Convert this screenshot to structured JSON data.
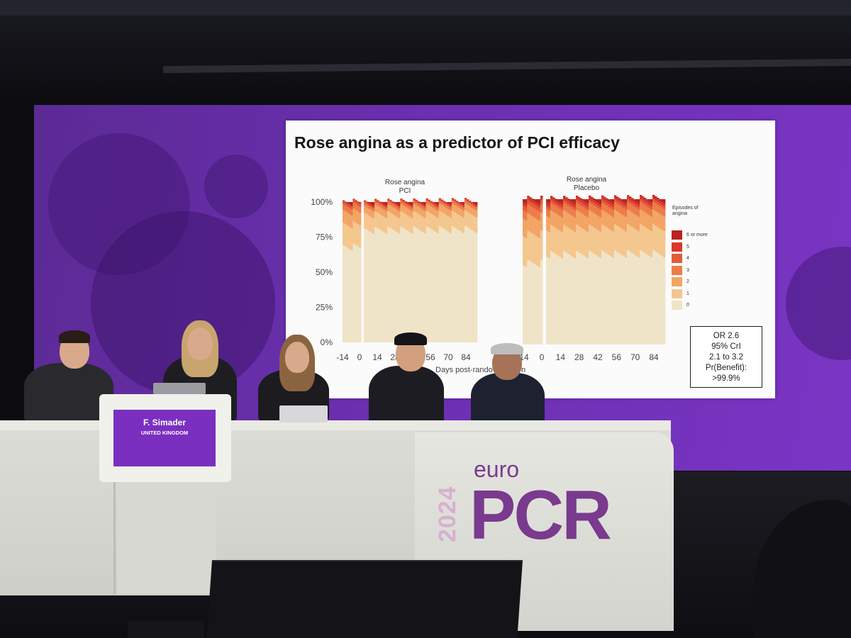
{
  "slide": {
    "title": "Rose angina as a predictor of PCI efficacy",
    "or_box": [
      "OR 2.6",
      "95% CrI",
      "2.1 to 3.2",
      "Pr(Benefit):",
      ">99.9%"
    ],
    "x_axis_label": "Days post-rando",
    "x_axis_label_suffix": "n"
  },
  "chart_data": [
    {
      "type": "bar",
      "title": "Rose angina\nPCI",
      "title_lines": [
        "Rose angina",
        "PCI"
      ],
      "y_ticks": [
        "100%",
        "75%",
        "50%",
        "25%",
        "0%"
      ],
      "x_ticks": [
        "-14",
        "0",
        "14",
        "28",
        "42",
        "56",
        "70",
        "84"
      ],
      "ylim": [
        0,
        100
      ],
      "stacked": true,
      "segments_percent_pre": {
        "0": 68,
        "1": 16,
        "2": 9,
        "3": 4,
        "4": 2,
        "5": 1,
        "6 or more": 0
      },
      "segments_percent_post": {
        "0": 80,
        "1": 11,
        "2": 5,
        "3": 2,
        "4": 1,
        "5": 1,
        "6 or more": 0
      }
    },
    {
      "type": "bar",
      "title": "Rose angina\nPlacebo",
      "title_lines": [
        "Rose angina",
        "Placebo"
      ],
      "y_ticks": [
        "100%",
        "75%",
        "50%",
        "25%",
        "0%"
      ],
      "x_ticks": [
        "-14",
        "0",
        "14",
        "28",
        "42",
        "56",
        "70",
        "84"
      ],
      "ylim": [
        0,
        100
      ],
      "stacked": true,
      "segments_percent_pre": {
        "0": 56,
        "1": 20,
        "2": 12,
        "3": 6,
        "4": 3,
        "5": 2,
        "6 or more": 1
      },
      "segments_percent_post": {
        "0": 62,
        "1": 18,
        "2": 10,
        "3": 5,
        "4": 2,
        "5": 2,
        "6 or more": 1
      }
    }
  ],
  "legend": {
    "title_lines": [
      "Episodes of",
      "angina"
    ],
    "items": [
      {
        "label": "6 or more",
        "color": "#b8231e"
      },
      {
        "label": "5",
        "color": "#d8392a"
      },
      {
        "label": "4",
        "color": "#e55a3a"
      },
      {
        "label": "3",
        "color": "#ec7d4b"
      },
      {
        "label": "2",
        "color": "#f2a565"
      },
      {
        "label": "1",
        "color": "#f4c78f"
      },
      {
        "label": "0",
        "color": "#f0e4c8"
      }
    ]
  },
  "podium": {
    "name": "F. Simader",
    "country": "UNITED KINGDOM"
  },
  "banner": {
    "year": "2024",
    "euro": "euro",
    "pcr": "PCR"
  },
  "colors": {
    "screen_purple": "#6a2fae",
    "brand_purple": "#7a3a8e"
  }
}
